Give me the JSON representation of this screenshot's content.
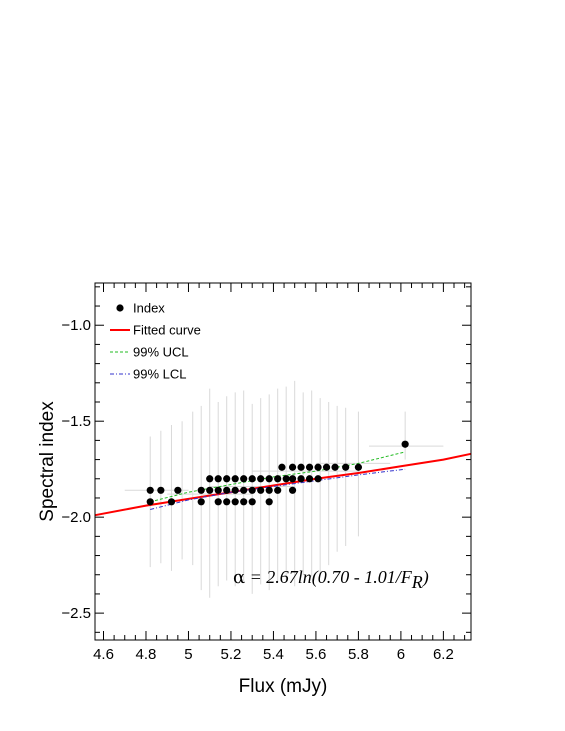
{
  "chart_data": {
    "type": "scatter",
    "title": "",
    "xlabel": "Flux (mJy)",
    "ylabel": "Spectral index",
    "xlim": [
      4.56,
      6.33
    ],
    "ylim": [
      -2.64,
      -0.78
    ],
    "x_ticks": [
      4.6,
      4.8,
      5.0,
      5.2,
      5.4,
      5.6,
      5.8,
      6.0,
      6.2
    ],
    "x_tick_labels": [
      "4.6",
      "4.8",
      "5",
      "5.2",
      "5.4",
      "5.6",
      "5.8",
      "6",
      "6.2"
    ],
    "y_ticks": [
      -1.0,
      -1.5,
      -2.0,
      -2.5
    ],
    "y_tick_labels": [
      "−1.0",
      "−1.5",
      "−2.0",
      "−2.5"
    ],
    "grid": false,
    "legend_position": "top-left",
    "series": [
      {
        "name": "Index",
        "style": "points",
        "color": "#000000",
        "points": [
          {
            "x": 4.82,
            "y": -1.86
          },
          {
            "x": 4.82,
            "y": -1.92
          },
          {
            "x": 4.87,
            "y": -1.86
          },
          {
            "x": 4.92,
            "y": -1.92
          },
          {
            "x": 4.95,
            "y": -1.86
          },
          {
            "x": 5.06,
            "y": -1.86
          },
          {
            "x": 5.06,
            "y": -1.92
          },
          {
            "x": 5.1,
            "y": -1.8
          },
          {
            "x": 5.1,
            "y": -1.86
          },
          {
            "x": 5.14,
            "y": -1.8
          },
          {
            "x": 5.14,
            "y": -1.86
          },
          {
            "x": 5.14,
            "y": -1.92
          },
          {
            "x": 5.18,
            "y": -1.8
          },
          {
            "x": 5.18,
            "y": -1.86
          },
          {
            "x": 5.18,
            "y": -1.92
          },
          {
            "x": 5.22,
            "y": -1.8
          },
          {
            "x": 5.22,
            "y": -1.86
          },
          {
            "x": 5.22,
            "y": -1.92
          },
          {
            "x": 5.26,
            "y": -1.8
          },
          {
            "x": 5.26,
            "y": -1.86
          },
          {
            "x": 5.26,
            "y": -1.92
          },
          {
            "x": 5.3,
            "y": -1.8
          },
          {
            "x": 5.3,
            "y": -1.86
          },
          {
            "x": 5.3,
            "y": -1.92
          },
          {
            "x": 5.34,
            "y": -1.8
          },
          {
            "x": 5.34,
            "y": -1.86
          },
          {
            "x": 5.38,
            "y": -1.8
          },
          {
            "x": 5.38,
            "y": -1.86
          },
          {
            "x": 5.38,
            "y": -1.92
          },
          {
            "x": 5.42,
            "y": -1.8
          },
          {
            "x": 5.42,
            "y": -1.86
          },
          {
            "x": 5.44,
            "y": -1.74
          },
          {
            "x": 5.46,
            "y": -1.8
          },
          {
            "x": 5.49,
            "y": -1.74
          },
          {
            "x": 5.49,
            "y": -1.8
          },
          {
            "x": 5.49,
            "y": -1.86
          },
          {
            "x": 5.53,
            "y": -1.74
          },
          {
            "x": 5.53,
            "y": -1.8
          },
          {
            "x": 5.57,
            "y": -1.74
          },
          {
            "x": 5.57,
            "y": -1.8
          },
          {
            "x": 5.61,
            "y": -1.74
          },
          {
            "x": 5.61,
            "y": -1.8
          },
          {
            "x": 5.65,
            "y": -1.74
          },
          {
            "x": 5.69,
            "y": -1.74
          },
          {
            "x": 5.74,
            "y": -1.74
          },
          {
            "x": 5.8,
            "y": -1.74
          },
          {
            "x": 6.02,
            "y": -1.62
          }
        ],
        "error_bars": [
          {
            "x": 4.82,
            "ylo": -2.26,
            "yhi": -1.58
          },
          {
            "x": 4.87,
            "ylo": -2.24,
            "yhi": -1.55
          },
          {
            "x": 4.92,
            "ylo": -2.28,
            "yhi": -1.52
          },
          {
            "x": 4.97,
            "ylo": -2.22,
            "yhi": -1.5
          },
          {
            "x": 5.02,
            "ylo": -2.25,
            "yhi": -1.45
          },
          {
            "x": 5.06,
            "ylo": -2.38,
            "yhi": -1.42
          },
          {
            "x": 5.1,
            "ylo": -2.42,
            "yhi": -1.33
          },
          {
            "x": 5.14,
            "ylo": -2.36,
            "yhi": -1.4
          },
          {
            "x": 5.18,
            "ylo": -2.33,
            "yhi": -1.37
          },
          {
            "x": 5.22,
            "ylo": -2.36,
            "yhi": -1.35
          },
          {
            "x": 5.26,
            "ylo": -2.34,
            "yhi": -1.34
          },
          {
            "x": 5.3,
            "ylo": -2.4,
            "yhi": -1.41
          },
          {
            "x": 5.34,
            "ylo": -2.35,
            "yhi": -1.38
          },
          {
            "x": 5.38,
            "ylo": -2.38,
            "yhi": -1.36
          },
          {
            "x": 5.42,
            "ylo": -2.34,
            "yhi": -1.33
          },
          {
            "x": 5.46,
            "ylo": -2.33,
            "yhi": -1.32
          },
          {
            "x": 5.5,
            "ylo": -2.36,
            "yhi": -1.29
          },
          {
            "x": 5.54,
            "ylo": -2.3,
            "yhi": -1.35
          },
          {
            "x": 5.58,
            "ylo": -2.31,
            "yhi": -1.34
          },
          {
            "x": 5.62,
            "ylo": -2.3,
            "yhi": -1.38
          },
          {
            "x": 5.66,
            "ylo": -2.25,
            "yhi": -1.4
          },
          {
            "x": 5.7,
            "ylo": -2.18,
            "yhi": -1.42
          },
          {
            "x": 5.74,
            "ylo": -2.15,
            "yhi": -1.43
          },
          {
            "x": 5.8,
            "ylo": -2.1,
            "yhi": -1.45
          },
          {
            "x": 6.02,
            "ylo": -1.7,
            "yhi": -1.45
          }
        ],
        "x_error_bars": [
          {
            "y": -1.86,
            "xlo": 4.7,
            "xhi": 5.0
          },
          {
            "y": -1.88,
            "xlo": 4.9,
            "xhi": 5.3
          },
          {
            "y": -1.84,
            "xlo": 5.1,
            "xhi": 5.5
          },
          {
            "y": -1.76,
            "xlo": 5.3,
            "xhi": 5.8
          },
          {
            "y": -1.72,
            "xlo": 5.6,
            "xhi": 5.95
          },
          {
            "y": -1.63,
            "xlo": 5.85,
            "xhi": 6.2
          }
        ],
        "error_bar_color": "#d9d9d9"
      },
      {
        "name": "Fitted curve",
        "style": "solid",
        "color": "#ff0000",
        "x": [
          4.56,
          4.8,
          5.0,
          5.2,
          5.4,
          5.6,
          5.8,
          6.0,
          6.2,
          6.33
        ],
        "y": [
          -1.99,
          -1.94,
          -1.905,
          -1.87,
          -1.835,
          -1.8,
          -1.77,
          -1.735,
          -1.7,
          -1.67
        ]
      },
      {
        "name": "99% UCL",
        "style": "dashed",
        "color": "#22bb22",
        "x": [
          4.82,
          5.0,
          5.2,
          5.4,
          5.6,
          5.8,
          6.02
        ],
        "y": [
          -1.92,
          -1.87,
          -1.83,
          -1.79,
          -1.76,
          -1.72,
          -1.66
        ]
      },
      {
        "name": "99% LCL",
        "style": "dashdot",
        "color": "#3333cc",
        "x": [
          4.82,
          5.0,
          5.2,
          5.4,
          5.6,
          5.8,
          6.02
        ],
        "y": [
          -1.96,
          -1.91,
          -1.87,
          -1.84,
          -1.81,
          -1.78,
          -1.75
        ]
      }
    ],
    "annotation": {
      "symbol": "α",
      "text": " = 2.67ln(0.70 - 1.01/F",
      "subscript": "R",
      "close": ")"
    }
  }
}
